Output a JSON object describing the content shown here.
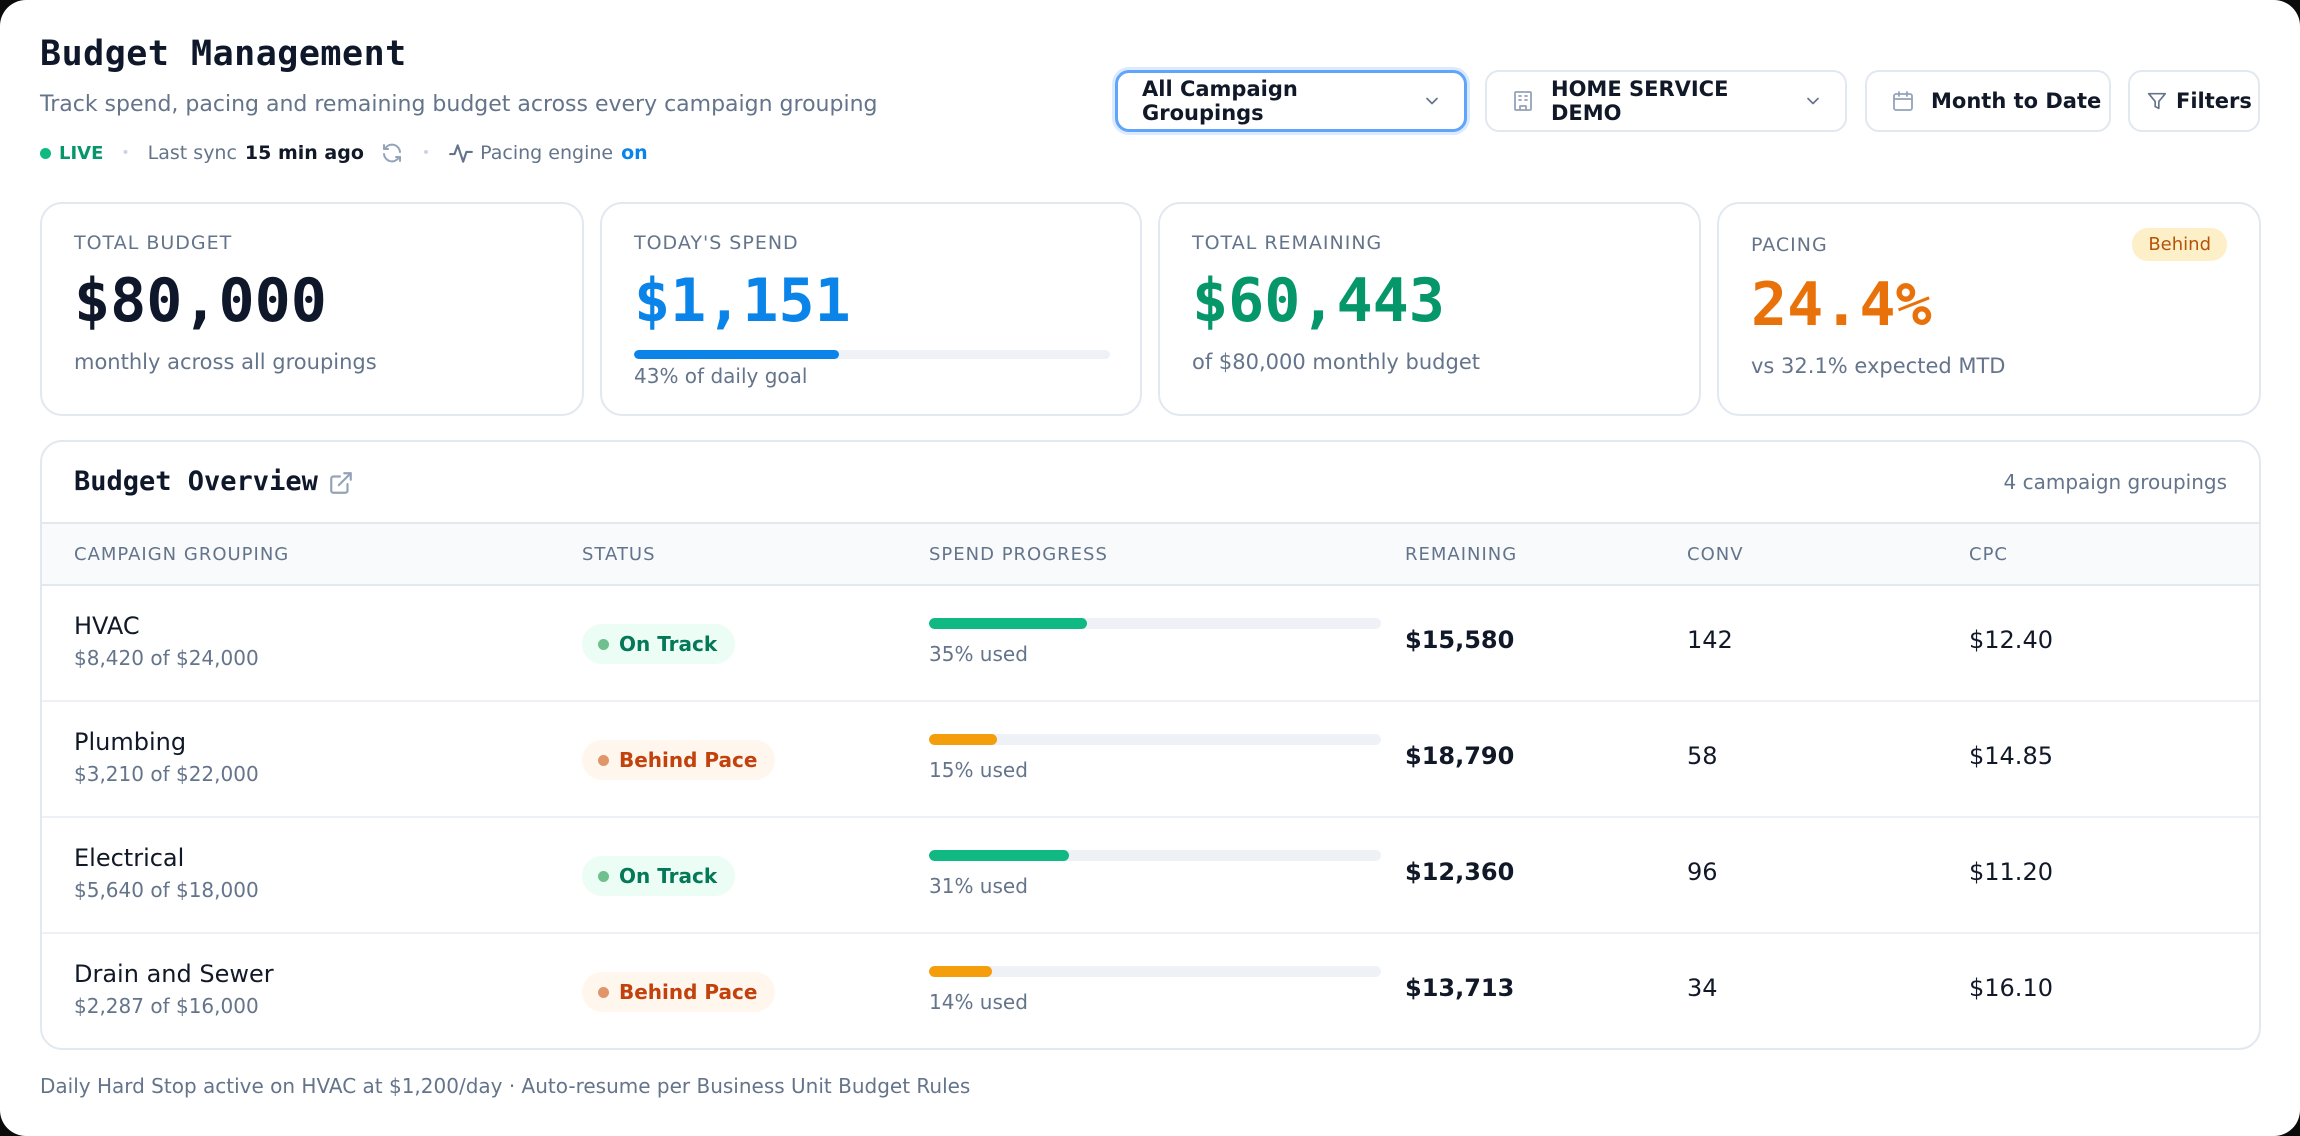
{
  "header": {
    "title": "Budget Management",
    "subtitle": "Track spend, pacing and remaining budget across every campaign grouping",
    "live_label": "LIVE",
    "sync_label": "Last sync",
    "sync_value": "15 min ago",
    "pacing_label": "Pacing engine",
    "pacing_value": "on"
  },
  "controls": {
    "grouping": "All Campaign Groupings",
    "account": "HOME SERVICE DEMO",
    "date_range": "Month to Date",
    "filters": "Filters"
  },
  "kpis": {
    "total_budget": {
      "label": "TOTAL BUDGET",
      "value": "$80,000",
      "note": "monthly across all groupings"
    },
    "todays_spend": {
      "label": "TODAY'S SPEND",
      "value": "$1,151",
      "progress": 0.43,
      "note": "43% of daily goal"
    },
    "total_remaining": {
      "label": "TOTAL REMAINING",
      "value": "$60,443",
      "note": "of $80,000 monthly budget"
    },
    "pacing": {
      "label": "PACING",
      "value": "24.4%",
      "badge": "Behind",
      "note": "vs 32.1% expected MTD"
    }
  },
  "colors": {
    "accent_blue": "#0a84e8",
    "success_green": "#10b981",
    "warning_orange": "#f59e0b",
    "pacing_orange": "#e8710a"
  },
  "table": {
    "title": "Budget Overview",
    "count_label": "4 campaign groupings",
    "columns": [
      "CAMPAIGN GROUPING",
      "STATUS",
      "SPEND PROGRESS",
      "REMAINING",
      "CONV",
      "CPC"
    ],
    "rows": [
      {
        "name": "HVAC",
        "sub": "$8,420 of $24,000",
        "status": "On Track",
        "status_type": "ok",
        "progress": 0.35,
        "progress_label": "35% used",
        "remaining": "$15,580",
        "conv": "142",
        "cpc": "$12.40"
      },
      {
        "name": "Plumbing",
        "sub": "$3,210 of $22,000",
        "status": "Behind Pace",
        "status_type": "warn",
        "progress": 0.15,
        "progress_label": "15% used",
        "remaining": "$18,790",
        "conv": "58",
        "cpc": "$14.85"
      },
      {
        "name": "Electrical",
        "sub": "$5,640 of $18,000",
        "status": "On Track",
        "status_type": "ok",
        "progress": 0.31,
        "progress_label": "31% used",
        "remaining": "$12,360",
        "conv": "96",
        "cpc": "$11.20"
      },
      {
        "name": "Drain and Sewer",
        "sub": "$2,287 of $16,000",
        "status": "Behind Pace",
        "status_type": "warn",
        "progress": 0.14,
        "progress_label": "14% used",
        "remaining": "$13,713",
        "conv": "34",
        "cpc": "$16.10"
      }
    ]
  },
  "footnote": "Daily Hard Stop active on HVAC at $1,200/day · Auto-resume per Business Unit Budget Rules"
}
